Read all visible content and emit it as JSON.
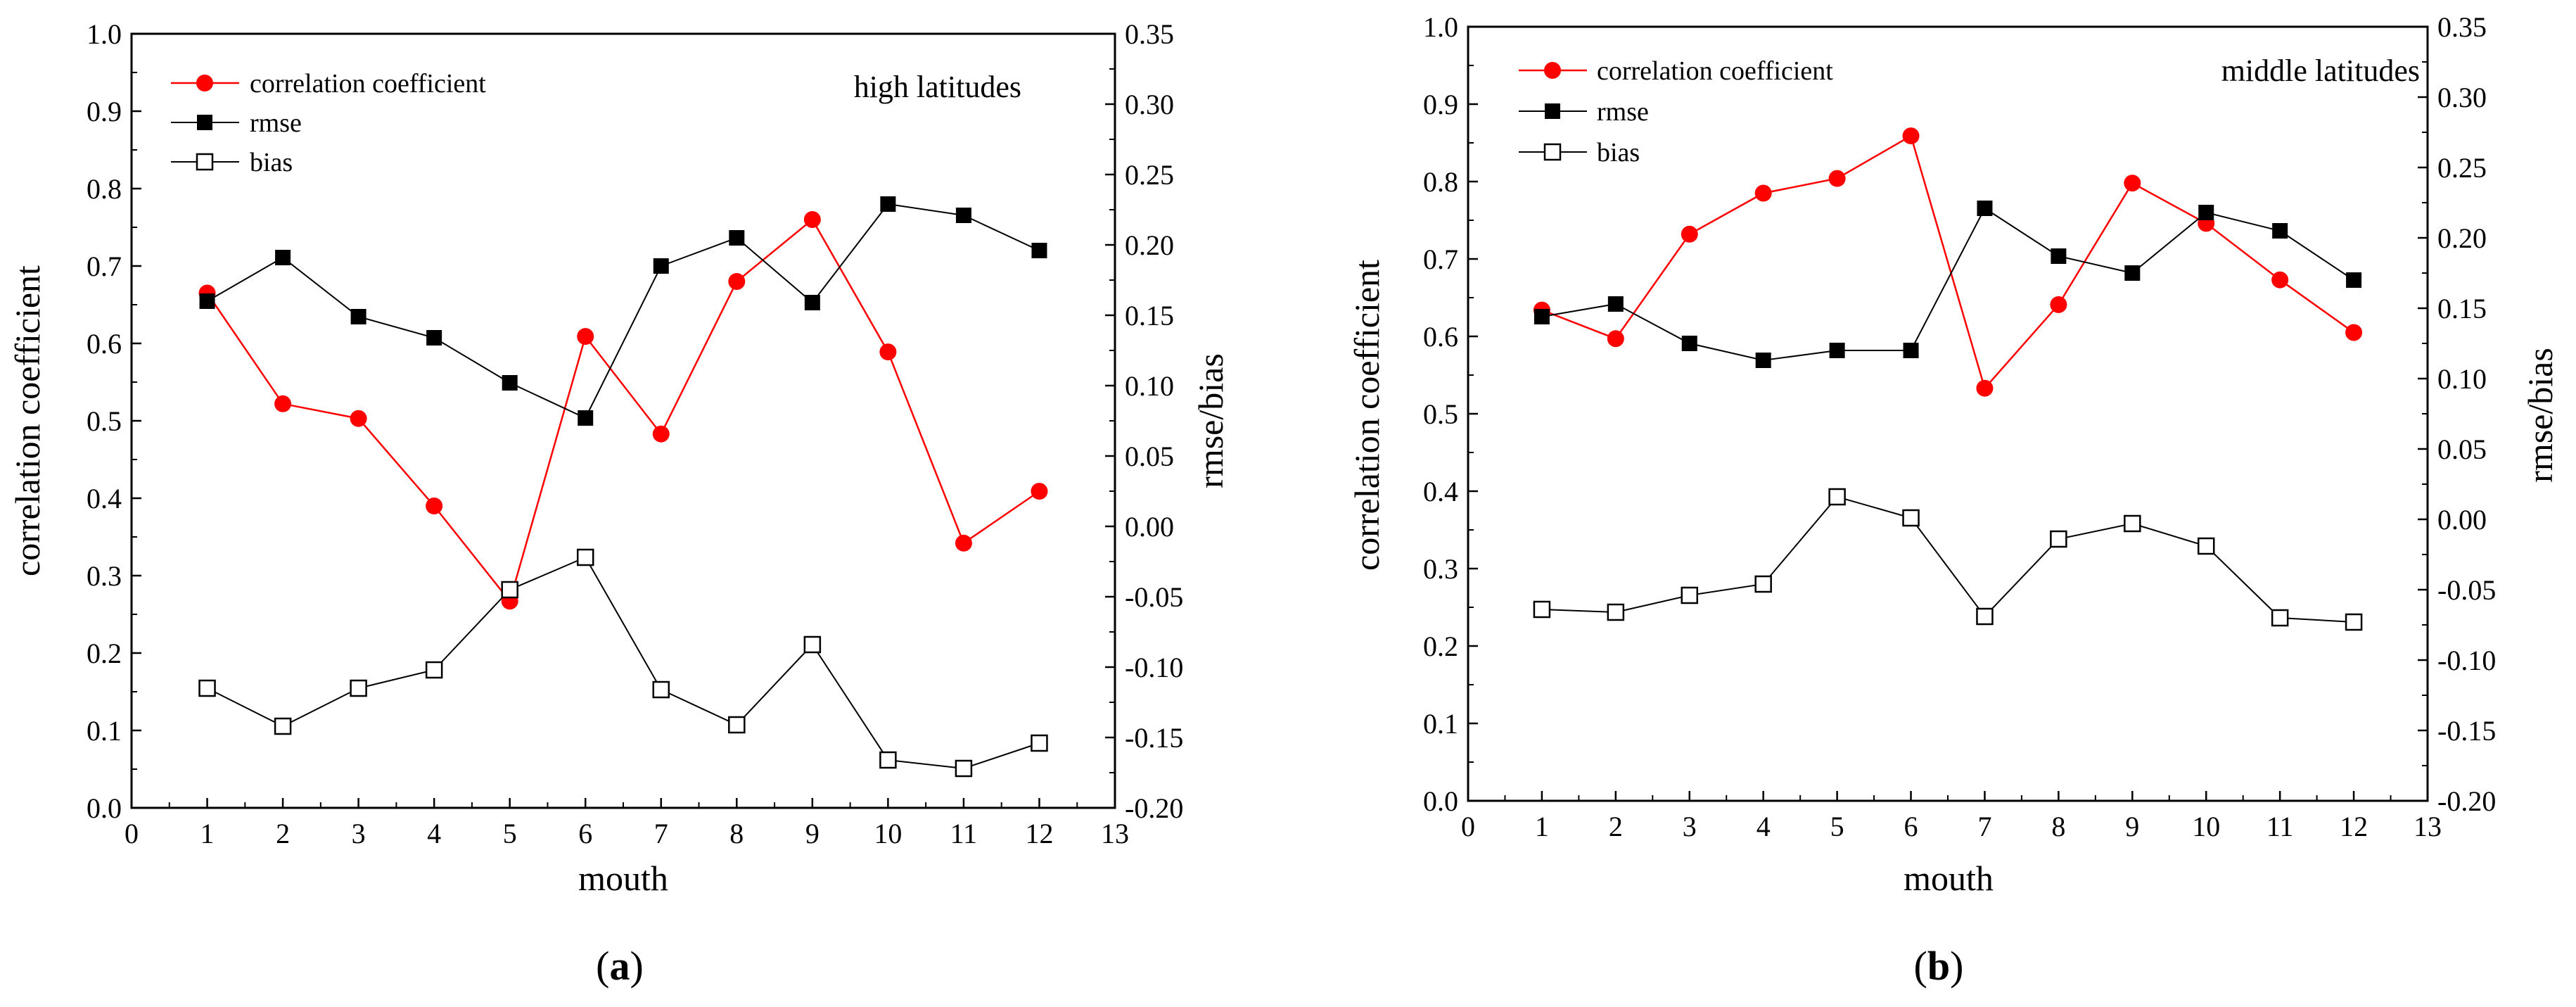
{
  "chart_data": [
    {
      "type": "line",
      "panel": "a",
      "caption_open": "(",
      "caption_letter": "a",
      "caption_close": ")",
      "annotation": "high latitudes",
      "xlabel": "mouth",
      "ylabel_left": "correlation coefficient",
      "ylabel_right": "rmse/bias",
      "xlim": [
        0,
        13
      ],
      "ylim_left": [
        0.0,
        1.0
      ],
      "ylim_right": [
        -0.2,
        0.35
      ],
      "x_ticks": [
        "0",
        "1",
        "2",
        "3",
        "4",
        "5",
        "6",
        "7",
        "8",
        "9",
        "10",
        "11",
        "12",
        "13"
      ],
      "y_left_ticks": [
        "0.0",
        "0.1",
        "0.2",
        "0.3",
        "0.4",
        "0.5",
        "0.6",
        "0.7",
        "0.8",
        "0.9",
        "1.0"
      ],
      "y_right_ticks": [
        "-0.20",
        "-0.15",
        "-0.10",
        "-0.05",
        "0.00",
        "0.05",
        "0.10",
        "0.15",
        "0.20",
        "0.25",
        "0.30",
        "0.35"
      ],
      "x": [
        1,
        2,
        3,
        4,
        5,
        6,
        7,
        8,
        9,
        10,
        11,
        12
      ],
      "series": [
        {
          "name": "correlation coefficient",
          "axis": "left",
          "color": "#ff0000",
          "marker": "circle",
          "values": [
            0.665,
            0.522,
            0.503,
            0.39,
            0.267,
            0.609,
            0.483,
            0.68,
            0.76,
            0.589,
            0.342,
            0.409
          ]
        },
        {
          "name": "rmse",
          "axis": "right",
          "color": "#000000",
          "marker": "filled-square",
          "values": [
            0.16,
            0.191,
            0.149,
            0.134,
            0.102,
            0.077,
            0.185,
            0.205,
            0.159,
            0.229,
            0.221,
            0.196
          ]
        },
        {
          "name": "bias",
          "axis": "right",
          "color": "#000000",
          "marker": "open-square",
          "values": [
            -0.115,
            -0.142,
            -0.115,
            -0.102,
            -0.045,
            -0.022,
            -0.116,
            -0.141,
            -0.084,
            -0.166,
            -0.172,
            -0.154
          ]
        }
      ]
    },
    {
      "type": "line",
      "panel": "b",
      "caption_open": "(",
      "caption_letter": "b",
      "caption_close": ")",
      "annotation": "middle latitudes",
      "xlabel": "mouth",
      "ylabel_left": "correlation coefficient",
      "ylabel_right": "rmse/bias",
      "xlim": [
        0,
        13
      ],
      "ylim_left": [
        0.0,
        1.0
      ],
      "ylim_right": [
        -0.2,
        0.35
      ],
      "x_ticks": [
        "0",
        "1",
        "2",
        "3",
        "4",
        "5",
        "6",
        "7",
        "8",
        "9",
        "10",
        "11",
        "12",
        "13"
      ],
      "y_left_ticks": [
        "0.0",
        "0.1",
        "0.2",
        "0.3",
        "0.4",
        "0.5",
        "0.6",
        "0.7",
        "0.8",
        "0.9",
        "1.0"
      ],
      "y_right_ticks": [
        "-0.20",
        "-0.15",
        "-0.10",
        "-0.05",
        "0.00",
        "0.05",
        "0.10",
        "0.15",
        "0.20",
        "0.25",
        "0.30",
        "0.35"
      ],
      "x": [
        1,
        2,
        3,
        4,
        5,
        6,
        7,
        8,
        9,
        10,
        11,
        12
      ],
      "series": [
        {
          "name": "correlation coefficient",
          "axis": "left",
          "color": "#ff0000",
          "marker": "circle",
          "values": [
            0.634,
            0.597,
            0.732,
            0.785,
            0.804,
            0.859,
            0.533,
            0.641,
            0.798,
            0.746,
            0.673,
            0.605
          ]
        },
        {
          "name": "rmse",
          "axis": "right",
          "color": "#000000",
          "marker": "filled-square",
          "values": [
            0.144,
            0.153,
            0.125,
            0.113,
            0.12,
            0.12,
            0.221,
            0.187,
            0.175,
            0.218,
            0.205,
            0.17
          ]
        },
        {
          "name": "bias",
          "axis": "right",
          "color": "#000000",
          "marker": "open-square",
          "values": [
            -0.064,
            -0.066,
            -0.054,
            -0.046,
            0.016,
            0.001,
            -0.069,
            -0.014,
            -0.003,
            -0.019,
            -0.07,
            -0.073
          ]
        }
      ]
    }
  ]
}
